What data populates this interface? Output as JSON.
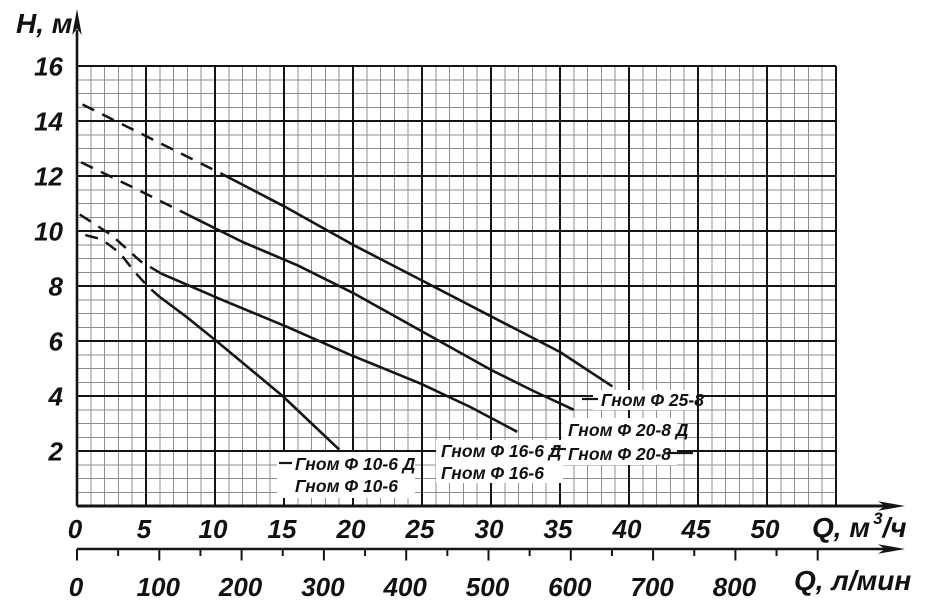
{
  "y_axis": {
    "title": "H, м",
    "ticks": [
      16,
      14,
      12,
      10,
      8,
      6,
      4,
      2
    ]
  },
  "x_axis_m3h": {
    "title_prefix": "Q, м",
    "title_sup": "3",
    "title_suffix": "/ч",
    "ticks": [
      0,
      5,
      10,
      15,
      20,
      25,
      30,
      35,
      40,
      45,
      50
    ]
  },
  "x_axis_lmin": {
    "title": "Q, л/мин",
    "ticks": [
      0,
      100,
      200,
      300,
      400,
      500,
      600,
      700,
      800
    ]
  },
  "curve_labels": {
    "l25_8": "Гном Ф 25-8",
    "l20_8d": "Гном Ф 20-8 Д",
    "l20_8": "Гном Ф 20-8",
    "l16_6d": "Гном Ф 16-6 Д",
    "l16_6": "Гном Ф 16-6",
    "l10_6d": "Гном Ф 10-6 Д",
    "l10_6": "Гном Ф 10-6"
  },
  "colors": {
    "curve": "#151515",
    "grid_minor": "#8f8f8f",
    "grid_major": "#141414",
    "background": "#ffffff",
    "text": "#111111"
  },
  "chart_data": {
    "type": "line",
    "title": "",
    "xlabel": "Q, м³/ч (верхняя ось) / Q, л/мин (нижняя ось)",
    "ylabel": "H, м",
    "x_primary": {
      "label": "Q, м³/ч",
      "range": [
        0,
        55
      ],
      "ticks": [
        0,
        5,
        10,
        15,
        20,
        25,
        30,
        35,
        40,
        45,
        50
      ]
    },
    "x_secondary": {
      "label": "Q, л/мин",
      "range": [
        0,
        900
      ],
      "ticks": [
        0,
        100,
        200,
        300,
        400,
        500,
        600,
        700,
        800
      ]
    },
    "y": {
      "label": "H, м",
      "range": [
        0,
        16
      ],
      "ticks": [
        2,
        4,
        6,
        8,
        10,
        12,
        14,
        16
      ]
    },
    "grid": {
      "x_minor_step": 1,
      "x_major_step": 5,
      "y_minor_step": 0.5,
      "y_major_step": 2,
      "grid_on": true
    },
    "line_style_note": "low-flow region shown dashed, working region solid",
    "series": [
      {
        "name": "Гном Ф 25-8",
        "labels": [
          "Гном Ф 25-8"
        ],
        "dashed": [
          [
            0.4,
            14.6
          ],
          [
            5,
            13.45
          ],
          [
            10.6,
            12.05
          ]
        ],
        "solid": [
          [
            10.6,
            12.05
          ],
          [
            15,
            10.9
          ],
          [
            20,
            9.5
          ],
          [
            25,
            8.2
          ],
          [
            30,
            6.9
          ],
          [
            35,
            5.6
          ],
          [
            38.8,
            4.35
          ]
        ]
      },
      {
        "name": "Гном Ф 20-8 / 20-8 Д",
        "labels": [
          "Гном Ф 20-8 Д",
          "Гном Ф 20-8"
        ],
        "dashed": [
          [
            0.3,
            12.5
          ],
          [
            4,
            11.6
          ],
          [
            8.2,
            10.55
          ]
        ],
        "solid": [
          [
            8.2,
            10.55
          ],
          [
            12,
            9.6
          ],
          [
            16,
            8.75
          ],
          [
            20,
            7.75
          ],
          [
            25,
            6.35
          ],
          [
            30,
            4.95
          ],
          [
            33,
            4.2
          ],
          [
            36,
            3.5
          ]
        ]
      },
      {
        "name": "Гном Ф 16-6 / 16-6 Д",
        "labels": [
          "Гном Ф 16-6 Д",
          "Гном Ф 16-6"
        ],
        "dashed": [
          [
            0.2,
            10.6
          ],
          [
            2.5,
            9.85
          ],
          [
            4.6,
            8.9
          ],
          [
            6.1,
            8.45
          ]
        ],
        "solid": [
          [
            6.1,
            8.45
          ],
          [
            10.5,
            7.5
          ],
          [
            15.3,
            6.5
          ],
          [
            19.8,
            5.5
          ],
          [
            24.9,
            4.45
          ],
          [
            28.5,
            3.6
          ],
          [
            31.9,
            2.7
          ]
        ]
      },
      {
        "name": "Гном Ф 10-6 / 10-6 Д",
        "labels": [
          "Гном Ф 10-6 Д",
          "Гном Ф 10-6"
        ],
        "dashed": [
          [
            0.6,
            9.85
          ],
          [
            1.8,
            9.7
          ],
          [
            3.1,
            9.2
          ],
          [
            4.2,
            8.5
          ],
          [
            5.2,
            7.95
          ],
          [
            6.0,
            7.6
          ]
        ],
        "solid": [
          [
            6.0,
            7.6
          ],
          [
            8,
            6.85
          ],
          [
            10.1,
            6.0
          ],
          [
            12.5,
            5.0
          ],
          [
            14.9,
            4.0
          ],
          [
            17,
            3.0
          ],
          [
            19,
            2.05
          ]
        ]
      }
    ]
  }
}
